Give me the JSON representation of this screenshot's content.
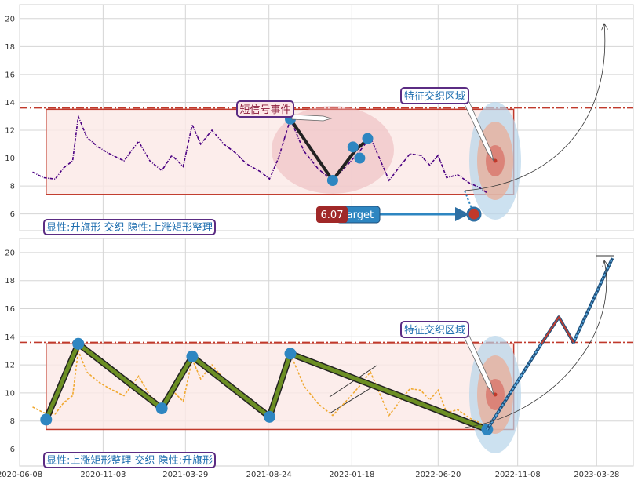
{
  "chart_data": [
    {
      "type": "line",
      "panel": "top",
      "xlim": [
        "2020-06-08",
        "2023-06-01"
      ],
      "ylim": [
        4.8,
        21
      ],
      "yticks": [
        6,
        8,
        10,
        12,
        14,
        16,
        18,
        20
      ],
      "grid": true,
      "series": [
        {
          "name": "",
          "color": "#4b0082",
          "style": "dash-dot",
          "points": [
            [
              "2020-07-01",
              9.0
            ],
            [
              "2020-07-20",
              8.6
            ],
            [
              "2020-08-10",
              8.5
            ],
            [
              "2020-08-25",
              9.3
            ],
            [
              "2020-09-10",
              9.8
            ],
            [
              "2020-09-20",
              13.0
            ],
            [
              "2020-10-05",
              11.5
            ],
            [
              "2020-10-25",
              10.8
            ],
            [
              "2020-11-15",
              10.3
            ],
            [
              "2020-12-10",
              9.8
            ],
            [
              "2021-01-05",
              11.2
            ],
            [
              "2021-01-25",
              9.8
            ],
            [
              "2021-02-15",
              9.1
            ],
            [
              "2021-03-05",
              10.2
            ],
            [
              "2021-03-25",
              9.4
            ],
            [
              "2021-04-10",
              12.4
            ],
            [
              "2021-04-25",
              11.0
            ],
            [
              "2021-05-15",
              12.0
            ],
            [
              "2021-06-05",
              11.0
            ],
            [
              "2021-06-25",
              10.4
            ],
            [
              "2021-07-15",
              9.6
            ],
            [
              "2021-08-10",
              9.0
            ],
            [
              "2021-08-25",
              8.5
            ],
            [
              "2021-09-10",
              10.0
            ],
            [
              "2021-10-01",
              12.8
            ],
            [
              "2021-10-25",
              10.5
            ],
            [
              "2021-11-20",
              9.2
            ],
            [
              "2021-12-15",
              8.4
            ],
            [
              "2022-01-10",
              9.5
            ],
            [
              "2022-02-01",
              10.5
            ],
            [
              "2022-02-20",
              11.5
            ],
            [
              "2022-03-10",
              9.8
            ],
            [
              "2022-03-25",
              8.4
            ],
            [
              "2022-04-15",
              9.5
            ],
            [
              "2022-05-01",
              10.3
            ],
            [
              "2022-05-20",
              10.2
            ],
            [
              "2022-06-05",
              9.5
            ],
            [
              "2022-06-20",
              10.2
            ],
            [
              "2022-07-05",
              8.6
            ],
            [
              "2022-07-25",
              8.8
            ],
            [
              "2022-08-15",
              8.2
            ],
            [
              "2022-09-01",
              7.9
            ],
            [
              "2022-09-15",
              7.5
            ]
          ]
        },
        {
          "name": "",
          "color": "#222222",
          "style": "thick",
          "points": [
            [
              "2021-10-01",
              12.8
            ],
            [
              "2021-12-15",
              8.4
            ],
            [
              "2022-01-25",
              10.6
            ],
            [
              "2022-02-20",
              11.5
            ]
          ]
        }
      ],
      "pivot_points": [
        [
          "2021-10-01",
          12.8
        ],
        [
          "2021-12-15",
          8.4
        ],
        [
          "2022-01-20",
          10.8
        ],
        [
          "2022-02-01",
          10.0
        ],
        [
          "2022-02-15",
          11.4
        ]
      ],
      "target": {
        "value": 6.07,
        "label": "Target",
        "date": "2022-10-01"
      },
      "box": {
        "x": [
          "2020-07-25",
          "2022-11-01"
        ],
        "y": [
          7.4,
          13.5
        ]
      },
      "hline": 13.6,
      "annotations": {
        "signal_event": "短信号事件",
        "feature_zone": "特征交织区域",
        "pattern": "显性:升旗形 交织 隐性:上涨矩形整理"
      }
    },
    {
      "type": "line",
      "panel": "bottom",
      "xlim": [
        "2020-06-08",
        "2023-06-01"
      ],
      "ylim": [
        4.8,
        21
      ],
      "yticks": [
        6,
        8,
        10,
        12,
        14,
        16,
        18,
        20
      ],
      "xticks": [
        "2020-06-08",
        "2020-11-03",
        "2021-03-29",
        "2021-08-24",
        "2022-01-18",
        "2022-06-20",
        "2022-11-08",
        "2023-03-28"
      ],
      "grid": true,
      "series": [
        {
          "name": "",
          "color": "#f0a830",
          "style": "dashed",
          "points": [
            [
              "2020-07-01",
              9.0
            ],
            [
              "2020-07-20",
              8.6
            ],
            [
              "2020-08-10",
              8.5
            ],
            [
              "2020-08-25",
              9.3
            ],
            [
              "2020-09-10",
              9.8
            ],
            [
              "2020-09-20",
              13.0
            ],
            [
              "2020-10-05",
              11.5
            ],
            [
              "2020-10-25",
              10.8
            ],
            [
              "2020-11-15",
              10.3
            ],
            [
              "2020-12-10",
              9.8
            ],
            [
              "2021-01-05",
              11.2
            ],
            [
              "2021-01-25",
              9.8
            ],
            [
              "2021-02-15",
              9.1
            ],
            [
              "2021-03-05",
              10.2
            ],
            [
              "2021-03-25",
              9.4
            ],
            [
              "2021-04-10",
              12.4
            ],
            [
              "2021-04-25",
              11.0
            ],
            [
              "2021-05-15",
              12.0
            ],
            [
              "2021-06-05",
              11.0
            ],
            [
              "2021-06-25",
              10.4
            ],
            [
              "2021-07-15",
              9.6
            ],
            [
              "2021-08-10",
              9.0
            ],
            [
              "2021-08-25",
              8.5
            ],
            [
              "2021-09-10",
              10.0
            ],
            [
              "2021-10-01",
              12.8
            ],
            [
              "2021-10-25",
              10.5
            ],
            [
              "2021-11-20",
              9.2
            ],
            [
              "2021-12-15",
              8.4
            ],
            [
              "2022-01-10",
              9.5
            ],
            [
              "2022-02-01",
              10.5
            ],
            [
              "2022-02-20",
              11.5
            ],
            [
              "2022-03-10",
              9.8
            ],
            [
              "2022-03-25",
              8.4
            ],
            [
              "2022-04-15",
              9.5
            ],
            [
              "2022-05-01",
              10.3
            ],
            [
              "2022-05-20",
              10.2
            ],
            [
              "2022-06-05",
              9.5
            ],
            [
              "2022-06-20",
              10.2
            ],
            [
              "2022-07-05",
              8.6
            ],
            [
              "2022-07-25",
              8.8
            ],
            [
              "2022-08-15",
              8.2
            ],
            [
              "2022-09-01",
              7.9
            ],
            [
              "2022-09-15",
              7.5
            ]
          ]
        },
        {
          "name": "",
          "color": "#6b8e23",
          "style": "zigzag",
          "points": [
            [
              "2020-07-25",
              8.1
            ],
            [
              "2020-09-20",
              13.5
            ],
            [
              "2021-02-15",
              8.9
            ],
            [
              "2021-04-10",
              12.6
            ],
            [
              "2021-08-25",
              8.3
            ],
            [
              "2021-10-01",
              12.8
            ],
            [
              "2022-09-15",
              7.4
            ]
          ]
        },
        {
          "name": "",
          "color": "#2e86c1",
          "style": "projection",
          "points": [
            [
              "2022-09-15",
              7.4
            ],
            [
              "2022-12-20",
              13.5
            ],
            [
              "2023-01-20",
              15.4
            ],
            [
              "2023-02-15",
              13.6
            ],
            [
              "2023-04-25",
              19.6
            ]
          ]
        }
      ],
      "box": {
        "x": [
          "2020-07-25",
          "2022-11-01"
        ],
        "y": [
          7.4,
          13.5
        ]
      },
      "hline": 13.6,
      "annotations": {
        "feature_zone": "特征交织区域",
        "pattern": "显性:上涨矩形整理 交织 隐性:升旗形"
      }
    }
  ]
}
